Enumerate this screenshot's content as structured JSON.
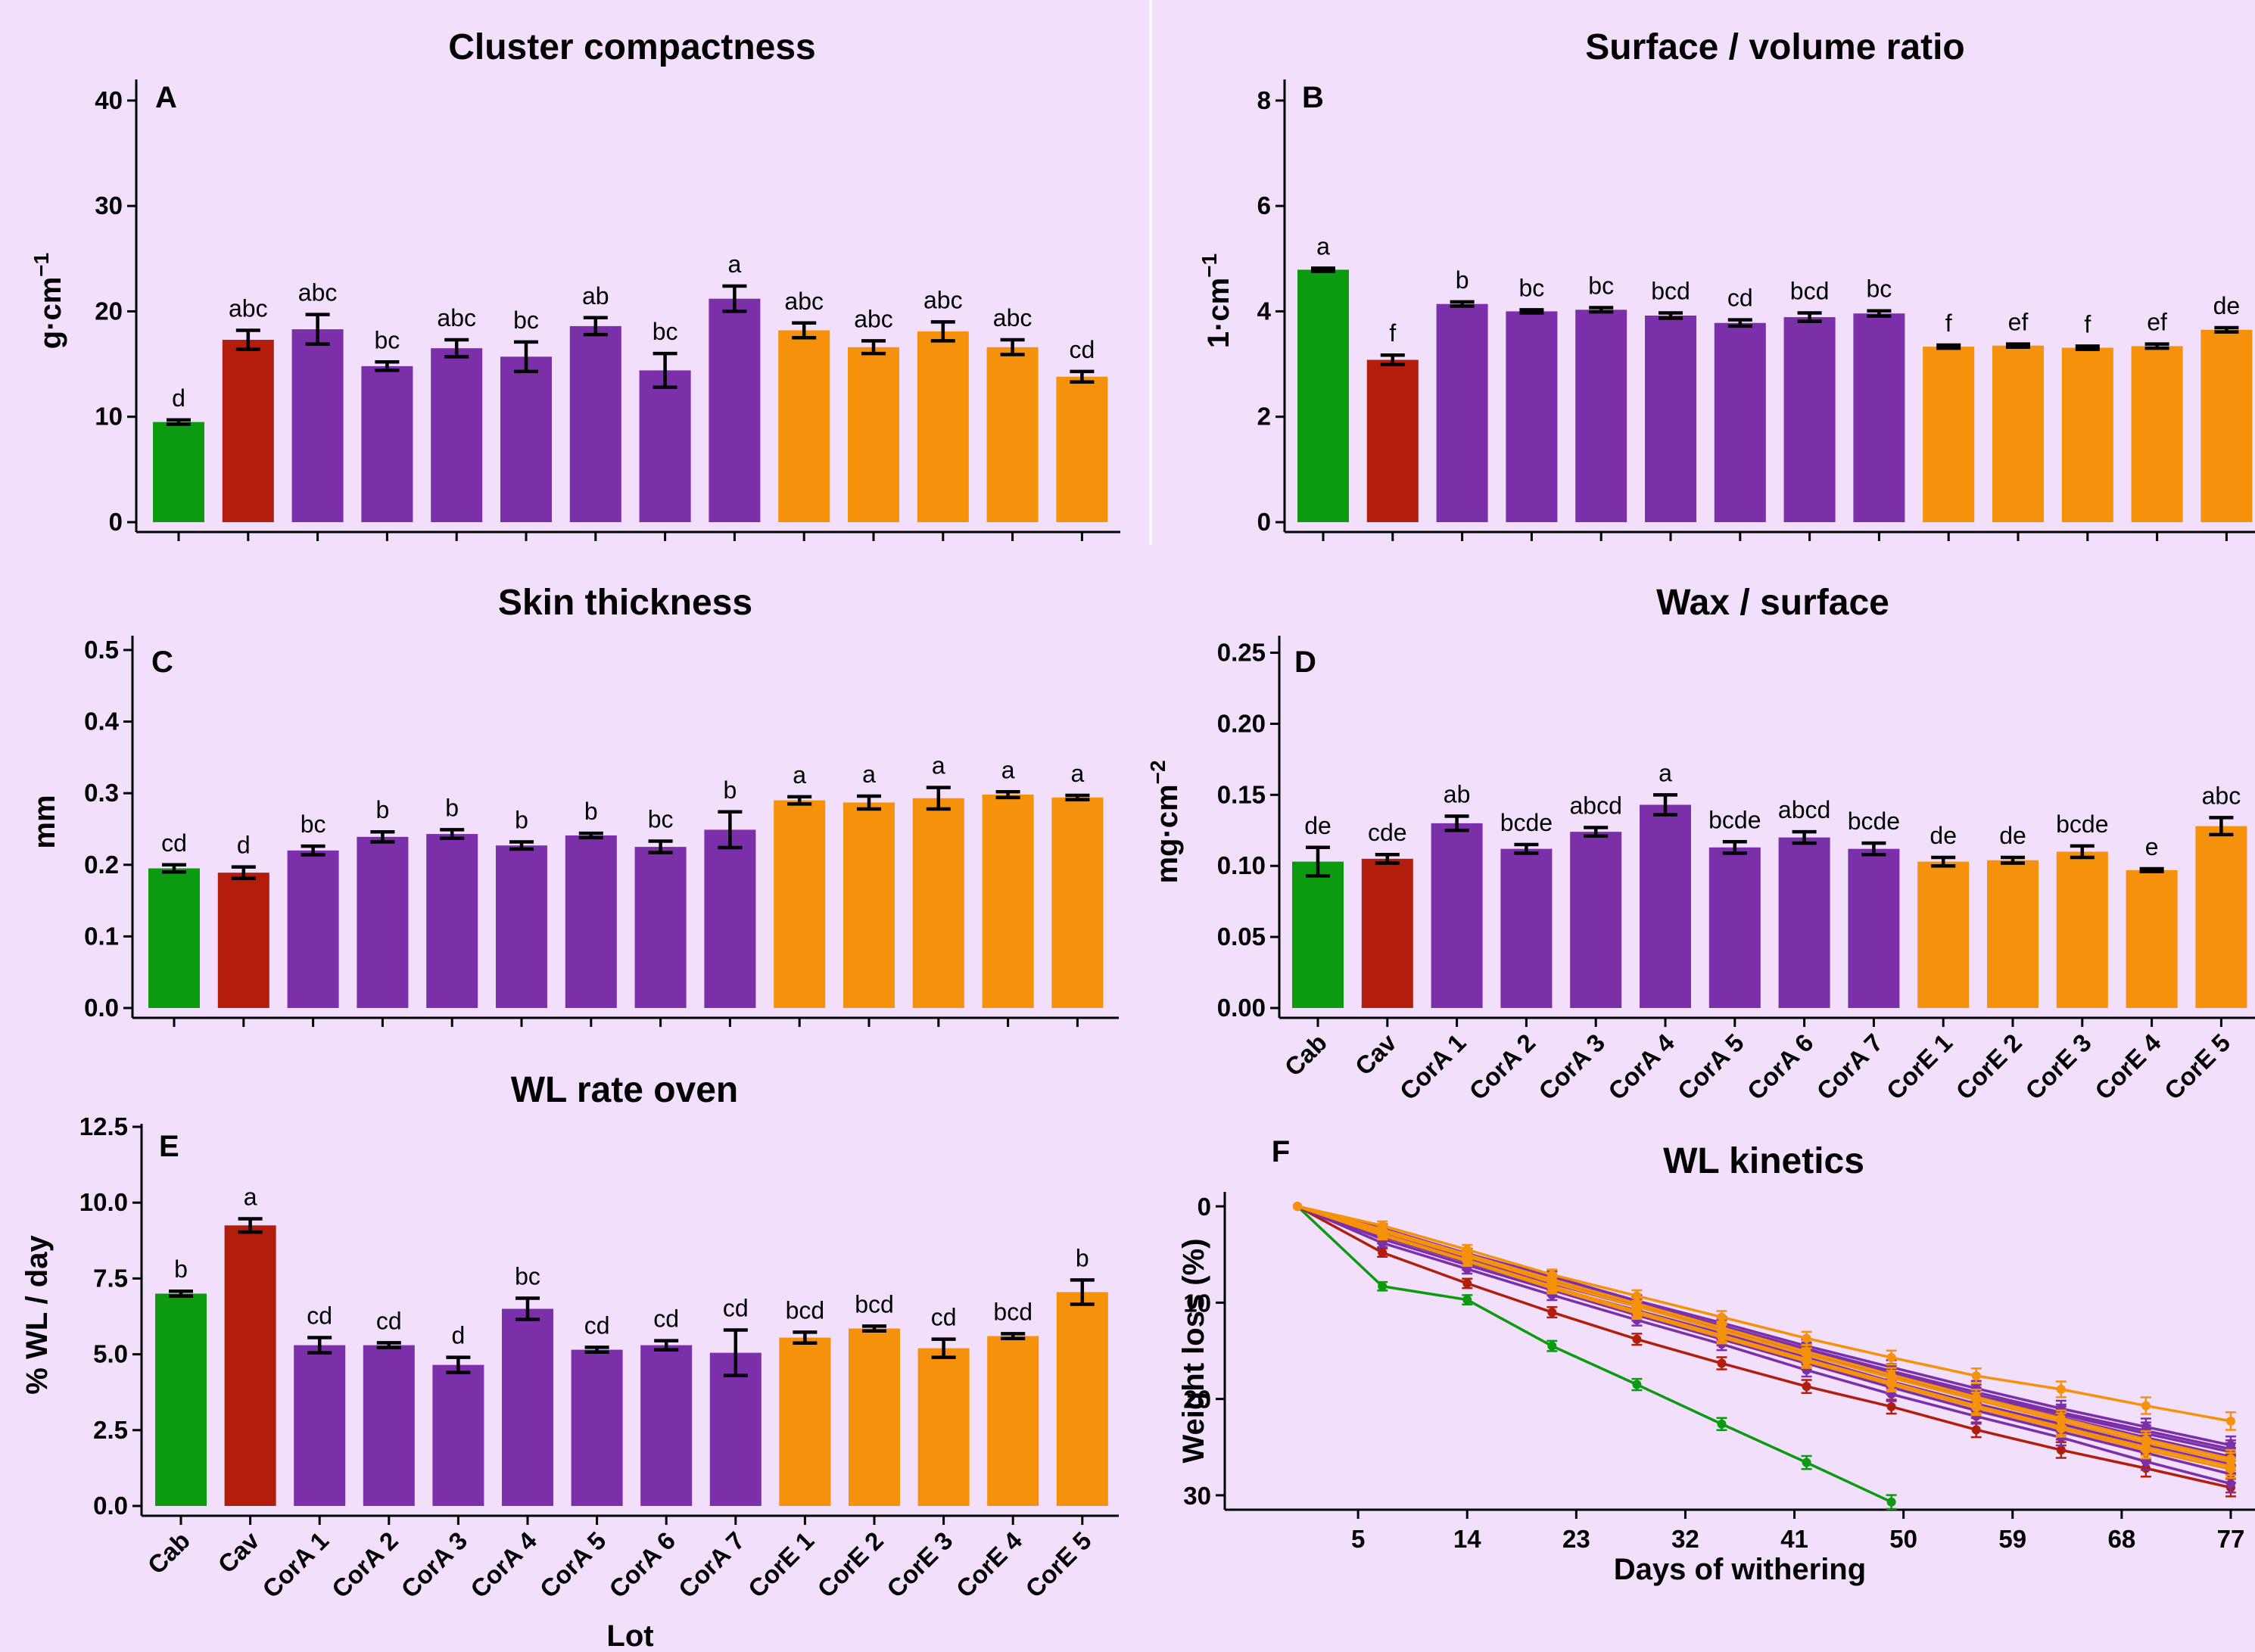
{
  "colors": {
    "background": "#f1dffc",
    "Cab": "#0b9a10",
    "Cav": "#b31d0b",
    "CorA": "#7b2fa8",
    "CorE": "#f5910a"
  },
  "chart_data": [
    {
      "id": "A",
      "type": "bar",
      "letter": "A",
      "title": "Cluster compactness",
      "ylabel_main": "g·cm",
      "ylabel_sup": "−1",
      "xlabel": "",
      "ylim": [
        0,
        42
      ],
      "yticks": [
        0,
        10,
        20,
        30,
        40
      ],
      "ytick_labels": [
        "0",
        "10",
        "20",
        "30",
        "40"
      ],
      "categories": [
        "Cab",
        "Cav",
        "CorA 1",
        "CorA 2",
        "CorA 3",
        "CorA 4",
        "CorA 5",
        "CorA 6",
        "CorA 7",
        "CorE 1",
        "CorE 2",
        "CorE 3",
        "CorE 4",
        "CorE 5"
      ],
      "values": [
        9.5,
        17.3,
        18.3,
        14.8,
        16.5,
        15.7,
        18.6,
        14.4,
        21.2,
        18.2,
        16.6,
        18.1,
        16.6,
        13.8
      ],
      "errors": [
        0.2,
        0.9,
        1.4,
        0.4,
        0.8,
        1.4,
        0.8,
        1.6,
        1.2,
        0.7,
        0.6,
        0.9,
        0.7,
        0.5
      ],
      "letters": [
        "d",
        "abc",
        "abc",
        "bc",
        "abc",
        "bc",
        "ab",
        "bc",
        "a",
        "abc",
        "abc",
        "abc",
        "abc",
        "cd"
      ],
      "show_xlabels": false
    },
    {
      "id": "B",
      "type": "bar",
      "letter": "B",
      "title": "Surface / volume ratio",
      "ylabel_main": "1·cm",
      "ylabel_sup": "−1",
      "xlabel": "",
      "ylim": [
        0,
        8.4
      ],
      "yticks": [
        0,
        2,
        4,
        6,
        8
      ],
      "ytick_labels": [
        "0",
        "2",
        "4",
        "6",
        "8"
      ],
      "categories": [
        "Cab",
        "Cav",
        "CorA 1",
        "CorA 2",
        "CorA 3",
        "CorA 4",
        "CorA 5",
        "CorA 6",
        "CorA 7",
        "CorE 1",
        "CorE 2",
        "CorE 3",
        "CorE 4",
        "CorE 5"
      ],
      "values": [
        4.79,
        3.08,
        4.14,
        4.0,
        4.03,
        3.92,
        3.78,
        3.89,
        3.96,
        3.33,
        3.35,
        3.31,
        3.34,
        3.65
      ],
      "errors": [
        0.03,
        0.09,
        0.04,
        0.03,
        0.04,
        0.05,
        0.06,
        0.08,
        0.05,
        0.03,
        0.03,
        0.03,
        0.04,
        0.04
      ],
      "letters": [
        "a",
        "f",
        "b",
        "bc",
        "bc",
        "bcd",
        "cd",
        "bcd",
        "bc",
        "f",
        "ef",
        "f",
        "ef",
        "de"
      ],
      "show_xlabels": false
    },
    {
      "id": "C",
      "type": "bar",
      "letter": "C",
      "title": "Skin thickness",
      "ylabel_main": "mm",
      "ylabel_sup": "",
      "xlabel": "",
      "ylim": [
        0,
        0.52
      ],
      "yticks": [
        0,
        0.1,
        0.2,
        0.3,
        0.4,
        0.5
      ],
      "ytick_labels": [
        "0.0",
        "0.1",
        "0.2",
        "0.3",
        "0.4",
        "0.5"
      ],
      "categories": [
        "Cab",
        "Cav",
        "CorA 1",
        "CorA 2",
        "CorA 3",
        "CorA 4",
        "CorA 5",
        "CorA 6",
        "CorA 7",
        "CorE 1",
        "CorE 2",
        "CorE 3",
        "CorE 4",
        "CorE 5"
      ],
      "values": [
        0.195,
        0.189,
        0.22,
        0.239,
        0.243,
        0.227,
        0.241,
        0.225,
        0.249,
        0.29,
        0.287,
        0.293,
        0.298,
        0.294
      ],
      "errors": [
        0.005,
        0.008,
        0.006,
        0.007,
        0.006,
        0.005,
        0.003,
        0.008,
        0.025,
        0.005,
        0.009,
        0.015,
        0.004,
        0.003
      ],
      "letters": [
        "cd",
        "d",
        "bc",
        "b",
        "b",
        "b",
        "b",
        "bc",
        "b",
        "a",
        "a",
        "a",
        "a",
        "a"
      ],
      "show_xlabels": false
    },
    {
      "id": "D",
      "type": "bar",
      "letter": "D",
      "title": "Wax / surface",
      "ylabel_main": "mg·cm",
      "ylabel_sup": "−2",
      "xlabel": "",
      "ylim": [
        0,
        0.262
      ],
      "yticks": [
        0,
        0.05,
        0.1,
        0.15,
        0.2,
        0.25
      ],
      "ytick_labels": [
        "0.00",
        "0.05",
        "0.10",
        "0.15",
        "0.20",
        "0.25"
      ],
      "categories": [
        "Cab",
        "Cav",
        "CorA 1",
        "CorA 2",
        "CorA 3",
        "CorA 4",
        "CorA 5",
        "CorA 6",
        "CorA 7",
        "CorE 1",
        "CorE 2",
        "CorE 3",
        "CorE 4",
        "CorE 5"
      ],
      "values": [
        0.103,
        0.105,
        0.13,
        0.112,
        0.124,
        0.143,
        0.113,
        0.12,
        0.112,
        0.103,
        0.104,
        0.11,
        0.097,
        0.128
      ],
      "errors": [
        0.01,
        0.003,
        0.005,
        0.003,
        0.003,
        0.007,
        0.004,
        0.004,
        0.004,
        0.003,
        0.002,
        0.004,
        0.001,
        0.006
      ],
      "letters": [
        "de",
        "cde",
        "ab",
        "bcde",
        "abcd",
        "a",
        "bcde",
        "abcd",
        "bcde",
        "de",
        "de",
        "bcde",
        "e",
        "abc"
      ],
      "show_xlabels": true
    },
    {
      "id": "E",
      "type": "bar",
      "letter": "E",
      "title": "WL rate oven",
      "ylabel_main": "% WL / day",
      "ylabel_sup": "",
      "xlabel": "Lot",
      "ylim": [
        0,
        12.6
      ],
      "yticks": [
        0,
        2.5,
        5,
        7.5,
        10,
        12.5
      ],
      "ytick_labels": [
        "0.0",
        "2.5",
        "5.0",
        "7.5",
        "10.0",
        "12.5"
      ],
      "categories": [
        "Cab",
        "Cav",
        "CorA 1",
        "CorA 2",
        "CorA 3",
        "CorA 4",
        "CorA 5",
        "CorA 6",
        "CorA 7",
        "CorE 1",
        "CorE 2",
        "CorE 3",
        "CorE 4",
        "CorE 5"
      ],
      "values": [
        7.0,
        9.25,
        5.3,
        5.3,
        4.65,
        6.5,
        5.15,
        5.3,
        5.05,
        5.55,
        5.85,
        5.2,
        5.6,
        7.05
      ],
      "errors": [
        0.08,
        0.22,
        0.25,
        0.08,
        0.25,
        0.35,
        0.08,
        0.15,
        0.75,
        0.18,
        0.08,
        0.3,
        0.08,
        0.4
      ],
      "letters": [
        "b",
        "a",
        "cd",
        "cd",
        "d",
        "bc",
        "cd",
        "cd",
        "cd",
        "bcd",
        "bcd",
        "cd",
        "bcd",
        "b"
      ],
      "show_xlabels": true
    },
    {
      "id": "F",
      "type": "line",
      "letter": "F",
      "title": "WL kinetics",
      "ylabel": "Weight loss (%)",
      "xlabel": "Days of withering",
      "xlim": [
        -6,
        79
      ],
      "ylim": [
        -1.5,
        31.5
      ],
      "xticks": [
        5,
        14,
        23,
        32,
        41,
        50,
        59,
        68,
        77
      ],
      "xtick_labels": [
        "5",
        "14",
        "23",
        "32",
        "41",
        "50",
        "59",
        "68",
        "77"
      ],
      "yticks": [
        0,
        10,
        20,
        30
      ],
      "ytick_labels": [
        "0",
        "10",
        "20",
        "30"
      ],
      "x": [
        0,
        7,
        14,
        21,
        28,
        35,
        42,
        49,
        56,
        63,
        70,
        77
      ],
      "series": [
        {
          "group": "Cab",
          "x": [
            0,
            7,
            14,
            21,
            28,
            35,
            42,
            49
          ],
          "values": [
            0,
            8.3,
            9.7,
            14.5,
            18.5,
            22.6,
            26.6,
            30.7
          ]
        },
        {
          "group": "Cav",
          "values": [
            0,
            4.8,
            8.0,
            11.0,
            13.8,
            16.3,
            18.7,
            20.8,
            23.2,
            25.3,
            27.2,
            29.2
          ]
        },
        {
          "group": "CorA",
          "values": [
            0,
            3.8,
            6.5,
            9.2,
            11.8,
            14.3,
            17.0,
            19.5,
            21.8,
            24.0,
            26.5,
            28.8
          ]
        },
        {
          "group": "CorA",
          "values": [
            0,
            3.4,
            6.1,
            8.7,
            11.3,
            13.8,
            16.3,
            18.8,
            21.2,
            23.4,
            25.6,
            27.8
          ]
        },
        {
          "group": "CorA",
          "values": [
            0,
            3.1,
            5.8,
            8.4,
            10.8,
            13.2,
            15.7,
            18.2,
            20.5,
            22.6,
            24.8,
            26.8
          ]
        },
        {
          "group": "CorA",
          "values": [
            0,
            2.8,
            5.4,
            8.0,
            10.4,
            12.8,
            15.2,
            17.6,
            19.8,
            21.9,
            24.0,
            26.0
          ]
        },
        {
          "group": "CorA",
          "values": [
            0,
            2.5,
            5.1,
            7.6,
            10.0,
            12.4,
            14.8,
            17.1,
            19.3,
            21.4,
            23.3,
            25.2
          ]
        },
        {
          "group": "CorA",
          "values": [
            0,
            2.3,
            4.9,
            7.3,
            9.8,
            12.1,
            14.5,
            16.7,
            18.9,
            21.0,
            22.9,
            24.8
          ]
        },
        {
          "group": "CorA",
          "values": [
            0,
            2.6,
            5.3,
            7.8,
            10.2,
            12.6,
            15.0,
            17.3,
            19.6,
            21.6,
            23.6,
            25.5
          ]
        },
        {
          "group": "CorE",
          "values": [
            0,
            2.0,
            4.5,
            7.1,
            9.3,
            11.5,
            13.7,
            15.7,
            17.6,
            19.0,
            20.7,
            22.3
          ]
        },
        {
          "group": "CorE",
          "values": [
            0,
            2.6,
            5.2,
            7.9,
            10.4,
            12.9,
            15.4,
            17.8,
            20.1,
            22.3,
            24.5,
            26.5
          ]
        },
        {
          "group": "CorE",
          "values": [
            0,
            2.9,
            5.6,
            8.3,
            10.9,
            13.4,
            15.9,
            18.3,
            20.7,
            22.9,
            25.0,
            27.0
          ]
        },
        {
          "group": "CorE",
          "values": [
            0,
            2.4,
            5.0,
            7.6,
            10.1,
            12.6,
            15.1,
            17.5,
            19.8,
            22.0,
            24.2,
            26.2
          ]
        },
        {
          "group": "CorE",
          "values": [
            0,
            3.0,
            5.7,
            8.5,
            11.1,
            13.6,
            16.1,
            18.5,
            20.9,
            23.1,
            25.3,
            27.3
          ]
        }
      ]
    }
  ]
}
